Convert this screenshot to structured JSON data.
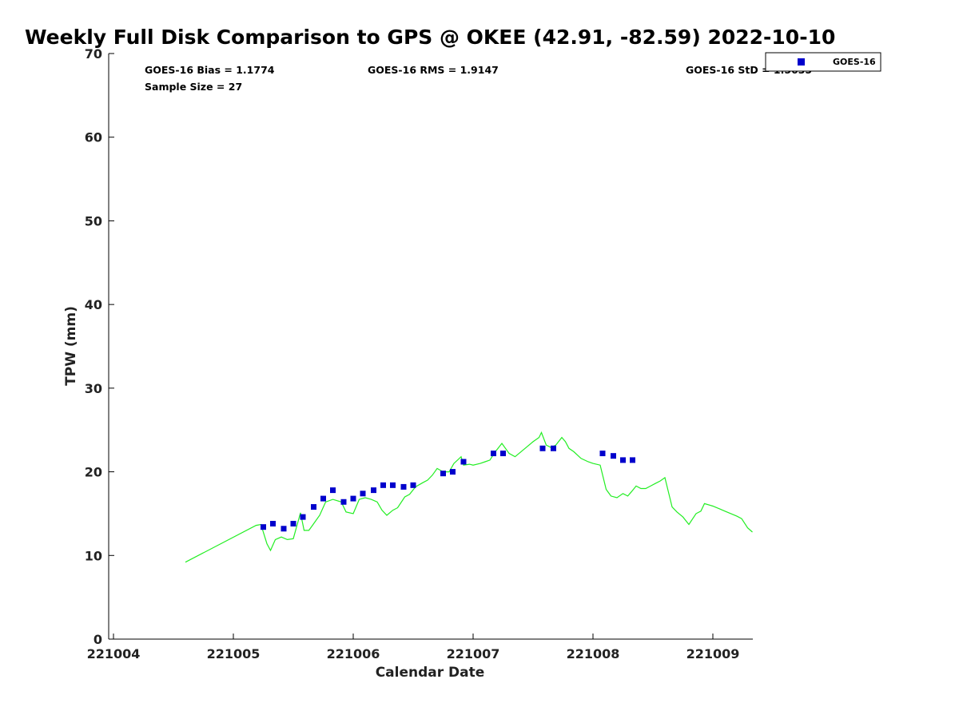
{
  "chart_data": {
    "type": "scatter",
    "title": "Weekly Full Disk Comparison to GPS @ OKEE (42.91, -82.59) 2022-10-10",
    "xlabel": "Calendar Date",
    "ylabel": "TPW (mm)",
    "xlim": [
      221004,
      221009.33
    ],
    "ylim": [
      0,
      70
    ],
    "x_ticks": [
      {
        "value": 221004,
        "label": "221004"
      },
      {
        "value": 221005,
        "label": "221005"
      },
      {
        "value": 221006,
        "label": "221006"
      },
      {
        "value": 221007,
        "label": "221007"
      },
      {
        "value": 221008,
        "label": "221008"
      },
      {
        "value": 221009,
        "label": "221009"
      }
    ],
    "y_ticks": [
      {
        "value": 0,
        "label": "0"
      },
      {
        "value": 10,
        "label": "10"
      },
      {
        "value": 20,
        "label": "20"
      },
      {
        "value": 30,
        "label": "30"
      },
      {
        "value": 40,
        "label": "40"
      },
      {
        "value": 50,
        "label": "50"
      },
      {
        "value": 60,
        "label": "60"
      },
      {
        "value": 70,
        "label": "70"
      }
    ],
    "stats": {
      "bias": "GOES-16 Bias = 1.1774",
      "rms": "GOES-16 RMS = 1.9147",
      "std": "GOES-16 StD = 1.5635",
      "sample": "Sample Size = 27"
    },
    "legend": {
      "position": "top-right",
      "label": "GOES-16"
    },
    "grid": false,
    "colors": {
      "goes": "#0000cc",
      "gps": "#22ee22"
    },
    "series": [
      {
        "name": "GOES-16",
        "type": "scatter",
        "color": "#0000cc",
        "x": [
          221005.25,
          221005.33,
          221005.42,
          221005.5,
          221005.58,
          221005.67,
          221005.75,
          221005.83,
          221005.92,
          221006.0,
          221006.08,
          221006.17,
          221006.25,
          221006.33,
          221006.42,
          221006.5,
          221006.75,
          221006.83,
          221006.92,
          221007.17,
          221007.25,
          221007.58,
          221007.67,
          221008.08,
          221008.17,
          221008.25,
          221008.33
        ],
        "y": [
          13.4,
          13.8,
          13.2,
          13.8,
          14.6,
          15.8,
          16.8,
          17.8,
          16.4,
          16.8,
          17.4,
          17.8,
          18.4,
          18.4,
          18.2,
          18.4,
          19.8,
          20.0,
          21.2,
          22.2,
          22.2,
          22.8,
          22.8,
          22.2,
          21.9,
          21.4,
          21.4
        ]
      },
      {
        "type": "line",
        "color": "#22ee22",
        "x": [
          221004.6,
          221005.19,
          221005.23,
          221005.28,
          221005.31,
          221005.35,
          221005.4,
          221005.45,
          221005.5,
          221005.56,
          221005.59,
          221005.63,
          221005.66,
          221005.72,
          221005.77,
          221005.83,
          221005.9,
          221005.94,
          221006.0,
          221006.05,
          221006.1,
          221006.15,
          221006.2,
          221006.24,
          221006.28,
          221006.33,
          221006.37,
          221006.43,
          221006.47,
          221006.52,
          221006.58,
          221006.62,
          221006.66,
          221006.7,
          221006.75,
          221006.8,
          221006.84,
          221006.9,
          221006.92,
          221006.97,
          221007.0,
          221007.06,
          221007.1,
          221007.14,
          221007.18,
          221007.24,
          221007.3,
          221007.35,
          221007.4,
          221007.45,
          221007.5,
          221007.55,
          221007.57,
          221007.61,
          221007.65,
          221007.69,
          221007.74,
          221007.77,
          221007.8,
          221007.84,
          221007.9,
          221007.96,
          221008.0,
          221008.06,
          221008.11,
          221008.15,
          221008.2,
          221008.25,
          221008.29,
          221008.32,
          221008.36,
          221008.4,
          221008.44,
          221008.48,
          221008.52,
          221008.56,
          221008.6,
          221008.66,
          221008.7,
          221008.75,
          221008.8,
          221008.86,
          221008.9,
          221008.93,
          221009.0,
          221009.05,
          221009.1,
          221009.15,
          221009.2,
          221009.24,
          221009.29,
          221009.33
        ],
        "y": [
          9.2,
          13.6,
          13.7,
          11.4,
          10.6,
          11.9,
          12.2,
          11.9,
          12.0,
          15.1,
          13.0,
          13.0,
          13.6,
          14.8,
          16.4,
          16.7,
          16.4,
          15.2,
          15.0,
          16.7,
          16.9,
          16.7,
          16.4,
          15.4,
          14.8,
          15.4,
          15.7,
          17.0,
          17.3,
          18.2,
          18.7,
          19.0,
          19.6,
          20.4,
          20.0,
          20.0,
          21.0,
          21.8,
          20.8,
          20.9,
          20.8,
          21.0,
          21.2,
          21.4,
          22.3,
          23.4,
          22.2,
          21.8,
          22.4,
          23.0,
          23.6,
          24.1,
          24.7,
          23.2,
          22.9,
          23.2,
          24.1,
          23.6,
          22.8,
          22.4,
          21.6,
          21.2,
          21.0,
          20.8,
          17.9,
          17.1,
          16.9,
          17.4,
          17.1,
          17.6,
          18.3,
          18.0,
          18.0,
          18.3,
          18.6,
          18.9,
          19.3,
          15.8,
          15.2,
          14.6,
          13.7,
          15.0,
          15.3,
          16.2,
          15.9,
          15.6,
          15.3,
          15.0,
          14.7,
          14.4,
          13.3,
          12.8
        ]
      }
    ]
  }
}
